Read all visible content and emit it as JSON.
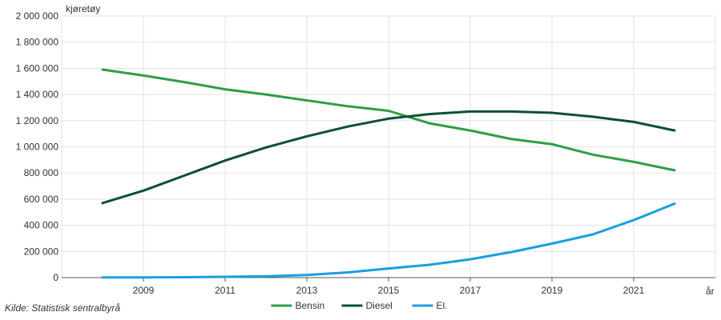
{
  "chart_data": {
    "type": "line",
    "ylabel": "kjøretøy",
    "xlabel": "år",
    "ylim": [
      0,
      2000000
    ],
    "xlim": [
      2007,
      2023
    ],
    "y_ticks": [
      0,
      200000,
      400000,
      600000,
      800000,
      1000000,
      1200000,
      1400000,
      1600000,
      1800000,
      2000000
    ],
    "y_tick_labels": [
      "0",
      "200 000",
      "400 000",
      "600 000",
      "800 000",
      "1 000 000",
      "1 200 000",
      "1 400 000",
      "1 600 000",
      "1 800 000",
      "2 000 000"
    ],
    "x_ticks": [
      2009,
      2011,
      2013,
      2015,
      2017,
      2019,
      2021
    ],
    "x_tick_labels": [
      "2009",
      "2011",
      "2013",
      "2015",
      "2017",
      "2019",
      "2021"
    ],
    "grid": true,
    "legend_position": "bottom",
    "x": [
      2008,
      2009,
      2010,
      2011,
      2012,
      2013,
      2014,
      2015,
      2016,
      2017,
      2018,
      2019,
      2020,
      2021,
      2022
    ],
    "series": [
      {
        "name": "Bensin",
        "color": "#2e9e44",
        "values": [
          1590000,
          1545000,
          1495000,
          1440000,
          1400000,
          1355000,
          1310000,
          1275000,
          1180000,
          1125000,
          1060000,
          1020000,
          940000,
          885000,
          820000
        ]
      },
      {
        "name": "Diesel",
        "color": "#0f4f32",
        "values": [
          570000,
          665000,
          780000,
          895000,
          995000,
          1080000,
          1155000,
          1215000,
          1250000,
          1270000,
          1270000,
          1260000,
          1230000,
          1190000,
          1125000
        ]
      },
      {
        "name": "El.",
        "color": "#1b9ee0",
        "values": [
          1000,
          2000,
          3000,
          6000,
          10000,
          20000,
          40000,
          70000,
          98000,
          140000,
          195000,
          260000,
          330000,
          440000,
          565000
        ]
      }
    ]
  },
  "source_text": "Kilde:  Statistisk sentralbyrå"
}
